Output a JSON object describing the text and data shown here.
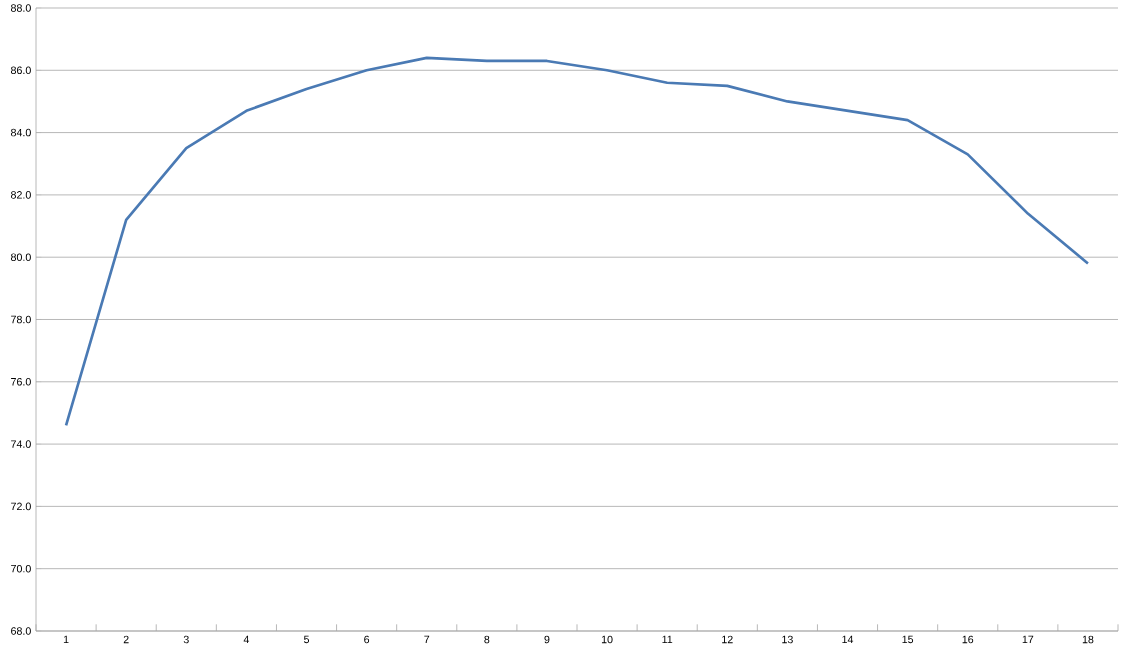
{
  "chart_data": {
    "type": "line",
    "categories": [
      "1",
      "2",
      "3",
      "4",
      "5",
      "6",
      "7",
      "8",
      "9",
      "10",
      "11",
      "12",
      "13",
      "14",
      "15",
      "16",
      "17",
      "18"
    ],
    "values": [
      74.6,
      81.2,
      83.5,
      84.7,
      85.4,
      86.0,
      86.4,
      86.3,
      86.3,
      86.0,
      85.6,
      85.5,
      85.0,
      84.7,
      84.4,
      83.3,
      81.4,
      79.8
    ],
    "color": "#4a7ab4",
    "ylim": [
      68,
      88
    ],
    "yticks": [
      {
        "value": 68,
        "label": "68.0"
      },
      {
        "value": 70,
        "label": "70.0"
      },
      {
        "value": 72,
        "label": "72.0"
      },
      {
        "value": 74,
        "label": "74.0"
      },
      {
        "value": 76,
        "label": "76.0"
      },
      {
        "value": 78,
        "label": "78.0"
      },
      {
        "value": 80,
        "label": "80.0"
      },
      {
        "value": 82,
        "label": "82.0"
      },
      {
        "value": 84,
        "label": "84.0"
      },
      {
        "value": 86,
        "label": "86.0"
      },
      {
        "value": 88,
        "label": "88.0"
      }
    ],
    "grid": "y",
    "marker": "none",
    "line_style": "solid"
  }
}
